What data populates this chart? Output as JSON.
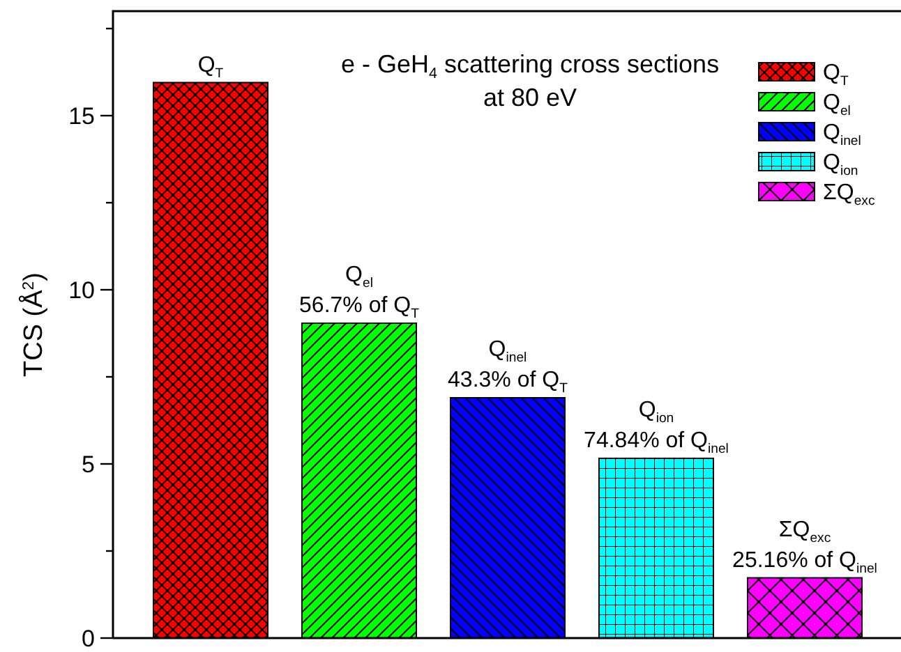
{
  "chart_data": {
    "type": "bar",
    "title": "e - GeH$_{4}$ scattering cross sections\nat 80 eV",
    "ylabel": "TCS (Å$^{2}$)",
    "categories": [
      null,
      null,
      null,
      null,
      null
    ],
    "series": [
      {
        "name": "Q$_{T}$",
        "color": "#ff0000",
        "values": [
          15.95,
          null,
          null,
          null,
          null
        ]
      },
      {
        "name": "Q$_{el}$",
        "color": "#00ff00",
        "values": [
          null,
          9.04,
          null,
          null,
          null
        ]
      },
      {
        "name": "Q$_{inel}$",
        "color": "#0000ff",
        "values": [
          null,
          null,
          6.9,
          null,
          null
        ]
      },
      {
        "name": "Q$_{ion}$",
        "color": "#00ffff",
        "values": [
          null,
          null,
          null,
          5.16,
          null
        ]
      },
      {
        "name": "ΣQ$_{exc}$",
        "color": "#ff00ff",
        "values": [
          null,
          null,
          null,
          null,
          1.73
        ]
      }
    ],
    "annotations": [
      {
        "text": "Q$_{T}$",
        "y": 15.95
      },
      {
        "text": "Q$_{el}$\n56.7% of Q$_{T}$",
        "y": 9.04
      },
      {
        "text": "Q$_{inel}$\n43.3% of Q$_{T}$",
        "y": 6.9
      },
      {
        "text": "Q$_{ion}$\n74.84% of Q$_{inel}$",
        "y": 5.16
      },
      {
        "text": "ΣQ$_{exc}$\n25.16% of Q$_{inel}$",
        "y": 1.73
      }
    ],
    "ylim": [
      0,
      18
    ],
    "yticks": [
      0,
      {
        "value": 2.5,
        "label": null
      },
      5,
      {
        "value": 7.5,
        "label": null
      },
      10,
      {
        "value": 12.5,
        "label": null
      },
      15,
      {
        "value": 17.5,
        "label": null
      }
    ],
    "legend": "top right"
  }
}
